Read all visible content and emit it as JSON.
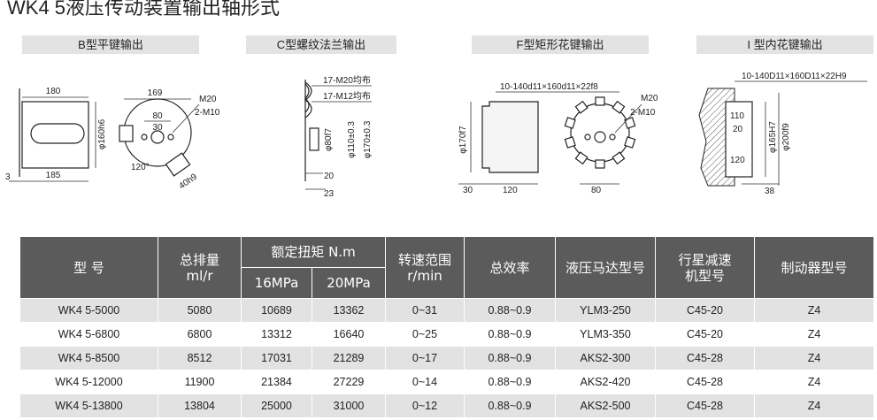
{
  "title": "WK4 5液压传动装置输出轴形式",
  "sections": [
    "B型平键输出",
    "C型螺纹法兰输出",
    "F型矩形花键输出",
    "I 型内花键输出"
  ],
  "drawings": [
    {
      "labels": [
        "180",
        "185",
        "3",
        "φ160h6",
        "169",
        "M20",
        "2-M10",
        "80",
        "30",
        "120°",
        "40h9"
      ]
    },
    {
      "labels": [
        "17-M20均布",
        "17-M12均布",
        "φ80f7",
        "φ110±0.3",
        "φ170±0.3",
        "20",
        "23"
      ]
    },
    {
      "labels": [
        "10-140d11×160d11×22f8",
        "φ170f7",
        "M20",
        "2-M10",
        "30",
        "120",
        "80"
      ]
    },
    {
      "labels": [
        "10-140D11×160D11×22H9",
        "110",
        "20",
        "120",
        "φ165H7",
        "φ200f9",
        "38"
      ]
    }
  ],
  "table": {
    "header": {
      "model": "型 号",
      "displacement": [
        "总排量",
        "ml/r"
      ],
      "torque": "额定扭矩 N.m",
      "torque_16": "16MPa",
      "torque_20": "20MPa",
      "speed": [
        "转速范围",
        "r/min"
      ],
      "efficiency": "总效率",
      "motor": "液压马达型号",
      "reducer": [
        "行星减速",
        "机型号"
      ],
      "brake": "制动器型号"
    },
    "rows": [
      [
        "WK4 5-5000",
        "5080",
        "10689",
        "13362",
        "0~31",
        "0.88~0.9",
        "YLM3-250",
        "C45-20",
        "Z4"
      ],
      [
        "WK4 5-6800",
        "6800",
        "13312",
        "16640",
        "0~25",
        "0.88~0.9",
        "YLM3-350",
        "C45-20",
        "Z4"
      ],
      [
        "WK4 5-8500",
        "8512",
        "17031",
        "21289",
        "0~17",
        "0.88~0.9",
        "AKS2-300",
        "C45-28",
        "Z4"
      ],
      [
        "WK4 5-12000",
        "11900",
        "21384",
        "27229",
        "0~14",
        "0.88~0.9",
        "AKS2-420",
        "C45-28",
        "Z4"
      ],
      [
        "WK4 5-13800",
        "13804",
        "25000",
        "31000",
        "0~12",
        "0.88~0.9",
        "AKS2-500",
        "C45-28",
        "Z4"
      ]
    ]
  }
}
